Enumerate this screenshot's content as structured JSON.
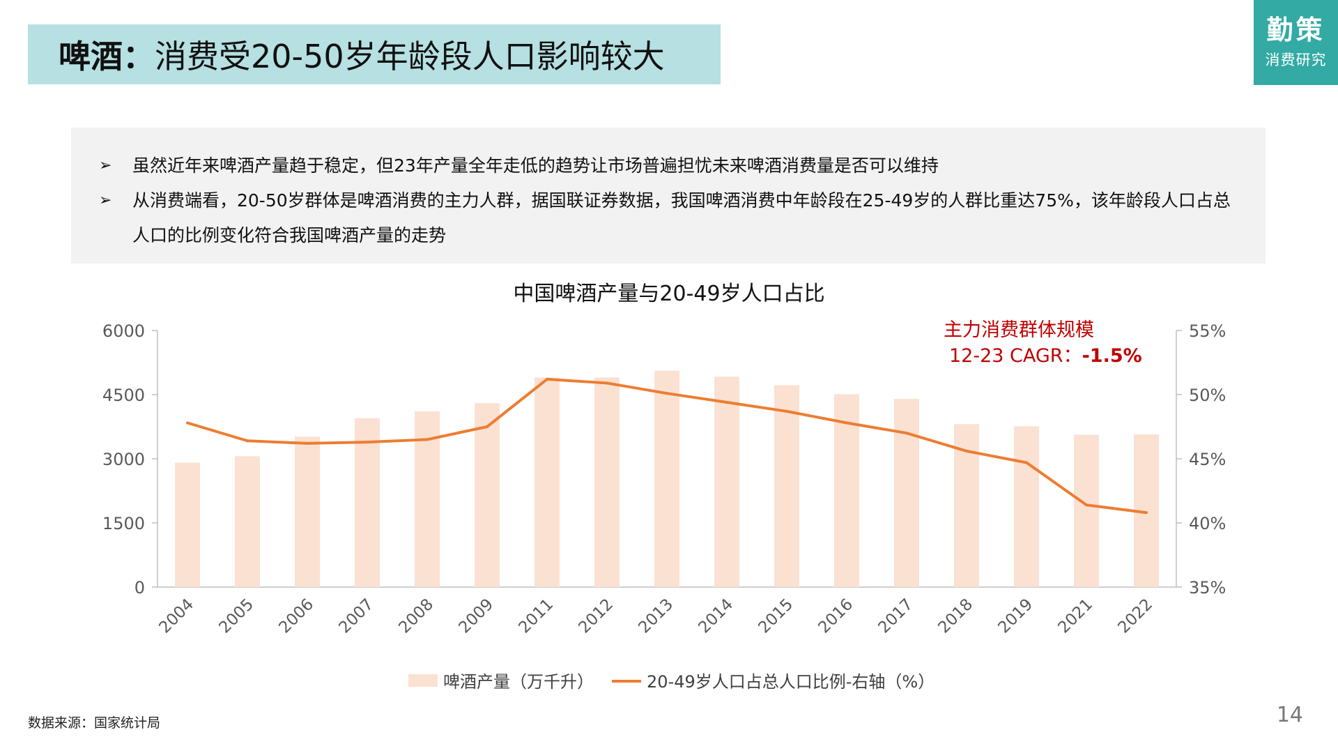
{
  "header": {
    "title_bold": "啤酒：",
    "title_rest": "消费受20-50岁年龄段人口影响较大"
  },
  "logo": {
    "line1": "勤策",
    "line2": "消费研究"
  },
  "bullets": [
    "虽然近年来啤酒产量趋于稳定，但23年产量全年走低的趋势让市场普遍担忧未来啤酒消费量是否可以维持",
    "从消费端看，20-50岁群体是啤酒消费的主力人群，据国联证券数据，我国啤酒消费中年龄段在25-49岁的人群比重达75%，该年龄段人口占总人口的比例变化符合我国啤酒产量的走势"
  ],
  "bullet_icon": "arrow-right-icon",
  "annotation": {
    "line1": "主力消费群体规模",
    "line2_prefix": "12-23 CAGR：",
    "line2_value": "-1.5%",
    "color": "#c00000"
  },
  "chart_data": {
    "type": "bar+line",
    "title": "中国啤酒产量与20-49岁人口占比",
    "categories": [
      "2004",
      "2005",
      "2006",
      "2007",
      "2008",
      "2009",
      "2011",
      "2012",
      "2013",
      "2014",
      "2015",
      "2016",
      "2017",
      "2018",
      "2019",
      "2021",
      "2022"
    ],
    "series": [
      {
        "name": "啤酒产量（万千升）",
        "type": "bar",
        "axis": "left",
        "color": "#fbe1d2",
        "values": [
          2910,
          3060,
          3520,
          3950,
          4110,
          4300,
          4900,
          4900,
          5060,
          4920,
          4720,
          4510,
          4400,
          3810,
          3760,
          3560,
          3570
        ]
      },
      {
        "name": "20-49岁人口占总人口比例-右轴（%）",
        "type": "line",
        "axis": "right",
        "color": "#ed7d31",
        "values": [
          47.8,
          46.4,
          46.2,
          46.3,
          46.5,
          47.5,
          51.2,
          50.9,
          50.1,
          49.4,
          48.7,
          47.8,
          47.0,
          45.6,
          44.7,
          41.4,
          40.8
        ]
      }
    ],
    "y_left": {
      "min": 0,
      "max": 6000,
      "ticks": [
        "0",
        "1500",
        "3000",
        "4500",
        "6000"
      ]
    },
    "y_right": {
      "min": 35,
      "max": 55,
      "ticks": [
        "35%",
        "40%",
        "45%",
        "50%",
        "55%"
      ]
    },
    "legend_position": "bottom",
    "grid": false
  },
  "footer": {
    "source": "数据来源：国家统计局",
    "page_number": "14"
  }
}
